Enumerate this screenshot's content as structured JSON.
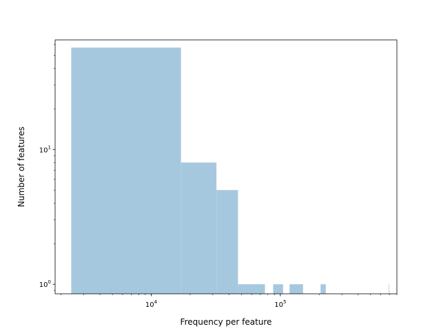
{
  "chart_data": {
    "type": "bar",
    "title": "",
    "xlabel": "Frequency per feature",
    "ylabel": "Number of features",
    "x_scale": "log",
    "y_scale": "log",
    "xlim": [
      1800,
      800000
    ],
    "ylim": [
      0.85,
      65
    ],
    "x_ticks": [
      {
        "value": 10000,
        "base": "10",
        "exp": "4"
      },
      {
        "value": 100000,
        "base": "10",
        "exp": "5"
      }
    ],
    "y_ticks": [
      {
        "value": 1,
        "base": "10",
        "exp": "0"
      },
      {
        "value": 10,
        "base": "10",
        "exp": "1"
      }
    ],
    "grid": false,
    "bar_color": "#a6c8df",
    "bins": [
      {
        "x0": 2400,
        "x1": 17000,
        "count": 57
      },
      {
        "x0": 17000,
        "x1": 32000,
        "count": 8
      },
      {
        "x0": 32000,
        "x1": 47000,
        "count": 5
      },
      {
        "x0": 47000,
        "x1": 76000,
        "count": 1
      },
      {
        "x0": 88000,
        "x1": 105000,
        "count": 1
      },
      {
        "x0": 118000,
        "x1": 150000,
        "count": 1
      },
      {
        "x0": 205000,
        "x1": 225000,
        "count": 1
      },
      {
        "x0": 690000,
        "x1": 697000,
        "count": 1
      }
    ]
  }
}
